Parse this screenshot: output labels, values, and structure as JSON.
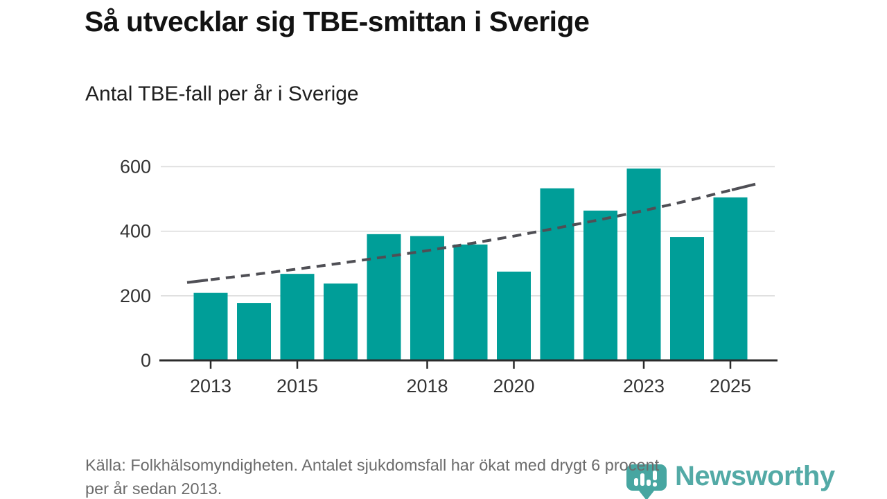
{
  "header": {
    "title": "Så utvecklar sig TBE-smittan i Sverige",
    "subtitle": "Antal TBE-fall per år i Sverige"
  },
  "footer": {
    "line1": "Källa: Folkhälsomyndigheten. Antalet sjukdomsfall har ökat med drygt 6 procent",
    "line2": "per år sedan 2013."
  },
  "branding": {
    "name": "Newsworthy",
    "icon": "newsworthy-bubble-barchart-icon",
    "text_color": "#4AA6A2",
    "icon_color": "#3EA29C"
  },
  "chart_data": {
    "type": "bar",
    "title": "Så utvecklar sig TBE-smittan i Sverige",
    "subtitle": "Antal TBE-fall per år i Sverige",
    "series_name": "Antal TBE-fall per år",
    "categories": [
      2013,
      2014,
      2015,
      2016,
      2017,
      2018,
      2019,
      2020,
      2021,
      2022,
      2023,
      2024,
      2025
    ],
    "values": [
      209,
      178,
      268,
      238,
      391,
      385,
      359,
      275,
      533,
      464,
      594,
      382,
      505
    ],
    "trend": {
      "style": "dashed",
      "description": "Trendlinje: ökning med drygt 6 procent per år sedan 2013",
      "values": [
        250,
        266,
        283,
        301,
        320,
        340,
        362,
        385,
        410,
        436,
        464,
        494,
        527
      ]
    },
    "x_tick_years": [
      2013,
      2015,
      2018,
      2020,
      2023,
      2025
    ],
    "y_ticks": [
      0,
      200,
      400,
      600
    ],
    "ylim": [
      0,
      600
    ],
    "grid": true,
    "legend": "none",
    "xlabel": "",
    "ylabel": "",
    "bar_color": "#009E98",
    "trend_color": "#4F4F55",
    "grid_color": "#dcdcdc",
    "axis_color": "#2b2b2b",
    "label_color": "#333333"
  }
}
